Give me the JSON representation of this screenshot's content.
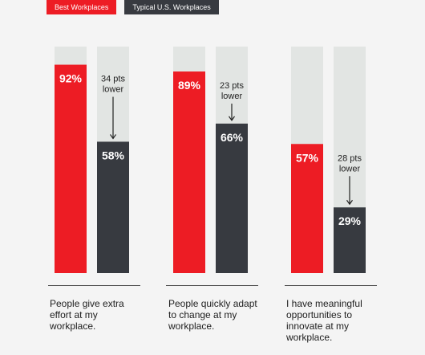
{
  "legend": {
    "best_label": "Best Workplaces",
    "typical_label": "Typical U.S. Workplaces"
  },
  "colors": {
    "best": "#ed1c24",
    "typical": "#373a40",
    "track": "#e2e5e3"
  },
  "chart_data": {
    "type": "bar",
    "categories": [
      "People give extra effort at my workplace.",
      "People quickly adapt to change at my workplace.",
      "I have meaningful opportunities to innovate at my workplace."
    ],
    "ylim": [
      0,
      100
    ],
    "series": [
      {
        "name": "Best Workplaces",
        "values": [
          92,
          89,
          57
        ],
        "labels": [
          "92%",
          "89%",
          "57%"
        ]
      },
      {
        "name": "Typical U.S. Workplaces",
        "values": [
          58,
          66,
          29
        ],
        "labels": [
          "58%",
          "66%",
          "29%"
        ]
      }
    ],
    "annotations": [
      {
        "line1": "34 pts",
        "line2": "lower"
      },
      {
        "line1": "23 pts",
        "line2": "lower"
      },
      {
        "line1": "28 pts",
        "line2": "lower"
      }
    ]
  }
}
